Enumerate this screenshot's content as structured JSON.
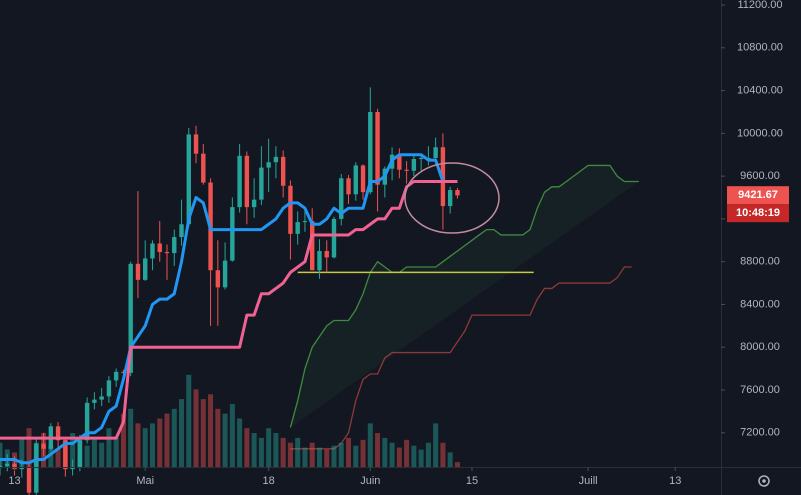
{
  "chart_data": {
    "type": "candlestick",
    "open": [
      6800,
      6870,
      6890,
      6910,
      6860,
      6880,
      6640,
      7100,
      7050,
      7260,
      7130,
      6860,
      6880,
      7130,
      7480,
      7510,
      7540,
      7690,
      7770,
      7760,
      8780,
      8630,
      8830,
      8970,
      8890,
      8880,
      9030,
      9150,
      9990,
      9810,
      9540,
      8720,
      8560,
      8810,
      9310,
      9790,
      9310,
      9380,
      9680,
      9730,
      9780,
      9510,
      9060,
      9170,
      9180,
      8720,
      8900,
      8840,
      9200,
      9580,
      9430,
      9700,
      9450,
      10200,
      9520,
      9670,
      9800,
      9660,
      9650,
      9760,
      9770,
      9770,
      9870,
      9320,
      9470
    ],
    "high": [
      6950,
      6960,
      7000,
      6980,
      6950,
      6930,
      7150,
      7200,
      7290,
      7300,
      7150,
      6950,
      7180,
      7530,
      7580,
      7620,
      7730,
      7800,
      7790,
      8800,
      9460,
      9000,
      9000,
      9180,
      8960,
      9100,
      9380,
      10050,
      10070,
      9900,
      9580,
      9000,
      8980,
      9400,
      9900,
      9830,
      9580,
      9880,
      9950,
      9880,
      9840,
      9560,
      9270,
      9310,
      9300,
      9010,
      9000,
      9220,
      9620,
      9610,
      9730,
      9710,
      10430,
      10230,
      9690,
      9870,
      9860,
      9740,
      9800,
      9800,
      9880,
      9960,
      10000,
      9500,
      9490
    ],
    "low": [
      6750,
      6800,
      6840,
      6800,
      6780,
      6600,
      6620,
      6980,
      7030,
      7060,
      6790,
      6800,
      6840,
      7100,
      7420,
      7450,
      7480,
      7630,
      7700,
      7730,
      8460,
      8620,
      8720,
      8800,
      8630,
      8760,
      8950,
      9120,
      9720,
      9520,
      8200,
      8200,
      8540,
      8800,
      9260,
      9150,
      9210,
      9330,
      9450,
      9580,
      9400,
      8820,
      8960,
      9080,
      8720,
      8640,
      8700,
      8830,
      9140,
      9340,
      9370,
      9380,
      9430,
      9270,
      9400,
      9560,
      9580,
      9530,
      9600,
      9650,
      9700,
      9730,
      9100,
      9250,
      9390
    ],
    "close": [
      6870,
      6890,
      6910,
      6860,
      6880,
      6640,
      7100,
      7050,
      7260,
      7130,
      6860,
      6880,
      7130,
      7480,
      7510,
      7540,
      7690,
      7770,
      7760,
      8780,
      8630,
      8830,
      8970,
      8890,
      8880,
      9030,
      9150,
      9990,
      9810,
      9540,
      8720,
      8560,
      8810,
      9310,
      9790,
      9310,
      9380,
      9680,
      9730,
      9780,
      9510,
      9060,
      9170,
      9180,
      8720,
      8900,
      8840,
      9200,
      9580,
      9430,
      9700,
      9450,
      10200,
      9520,
      9670,
      9800,
      9660,
      9650,
      9760,
      9770,
      9770,
      9870,
      9320,
      9470,
      9420
    ],
    "volume": [
      20,
      25,
      18,
      15,
      30,
      40,
      25,
      35,
      22,
      18,
      28,
      35,
      30,
      22,
      30,
      25,
      40,
      30,
      55,
      60,
      45,
      40,
      45,
      50,
      55,
      60,
      70,
      95,
      80,
      70,
      75,
      60,
      55,
      65,
      50,
      40,
      35,
      30,
      40,
      35,
      30,
      25,
      30,
      20,
      25,
      20,
      18,
      22,
      25,
      30,
      22,
      28,
      45,
      35,
      30,
      25,
      20,
      28,
      22,
      18,
      25,
      45,
      25,
      15,
      5
    ],
    "vlim": [
      0,
      100
    ],
    "up_color": "#26a69a",
    "down_color": "#ef5350",
    "lines": [
      {
        "color": "#2196f3",
        "values": [
          6950,
          6950,
          6950,
          6950,
          6920,
          6920,
          6950,
          6950,
          7000,
          7050,
          7100,
          7100,
          7150,
          7200,
          7200,
          7250,
          7400,
          7450,
          7700,
          8000,
          8100,
          8200,
          8400,
          8450,
          8450,
          8500,
          8800,
          9200,
          9400,
          9350,
          9100,
          9100,
          9100,
          9100,
          9100,
          9100,
          9100,
          9100,
          9150,
          9200,
          9300,
          9350,
          9350,
          9300,
          9150,
          9150,
          9200,
          9300,
          9250,
          9300,
          9300,
          9300,
          9550,
          9550,
          9600,
          9750,
          9800,
          9800,
          9800,
          9800,
          9750,
          9750,
          9550,
          9550,
          9550
        ]
      },
      {
        "color": "#f06292",
        "values": [
          7150,
          7150,
          7150,
          7150,
          7150,
          7150,
          7150,
          7150,
          7150,
          7150,
          7150,
          7150,
          7150,
          7150,
          7150,
          7150,
          7150,
          7150,
          7300,
          8000,
          8000,
          8000,
          8000,
          8000,
          8000,
          8000,
          8000,
          8000,
          8000,
          8000,
          8000,
          8000,
          8000,
          8000,
          8000,
          8300,
          8300,
          8500,
          8500,
          8550,
          8600,
          8700,
          8750,
          8800,
          9050,
          9050,
          9050,
          9050,
          9050,
          9050,
          9100,
          9100,
          9150,
          9200,
          9200,
          9300,
          9300,
          9500,
          9550,
          9550,
          9550,
          9550,
          9550,
          9550,
          9550
        ]
      }
    ],
    "cloud": {
      "span_a": {
        "color": "#3f8a3f",
        "values": [
          null,
          null,
          null,
          null,
          null,
          null,
          null,
          null,
          null,
          null,
          null,
          null,
          null,
          null,
          null,
          null,
          null,
          null,
          null,
          null,
          null,
          null,
          null,
          null,
          null,
          null,
          null,
          null,
          null,
          null,
          null,
          null,
          null,
          null,
          null,
          null,
          null,
          null,
          null,
          null,
          null,
          7250,
          7500,
          7800,
          8000,
          8100,
          8200,
          8250,
          8250,
          8250,
          8350,
          8500,
          8700,
          8800,
          8750,
          8700,
          8700,
          8750,
          8750,
          8750,
          8750,
          8750,
          8800,
          8850,
          8900,
          8950,
          9000,
          9050,
          9100,
          9100,
          9050,
          9050,
          9050,
          9050,
          9100,
          9300,
          9450,
          9500,
          9500,
          9550,
          9600,
          9650,
          9700,
          9700,
          9700,
          9700,
          9600,
          9550,
          9550,
          9550
        ]
      },
      "span_b": {
        "color": "#8c3a36",
        "values": [
          null,
          null,
          null,
          null,
          null,
          null,
          null,
          null,
          null,
          null,
          null,
          null,
          null,
          null,
          null,
          null,
          null,
          null,
          null,
          null,
          null,
          null,
          null,
          null,
          null,
          null,
          null,
          null,
          null,
          null,
          null,
          null,
          null,
          null,
          null,
          null,
          null,
          null,
          null,
          null,
          null,
          7050,
          7050,
          7050,
          7050,
          7050,
          7050,
          7050,
          7100,
          7200,
          7500,
          7700,
          7750,
          7750,
          7900,
          7950,
          7950,
          7950,
          7950,
          7950,
          7950,
          7950,
          7950,
          7950,
          8050,
          8150,
          8300,
          8300,
          8300,
          8300,
          8300,
          8300,
          8300,
          8300,
          8300,
          8450,
          8550,
          8550,
          8600,
          8600,
          8600,
          8600,
          8600,
          8600,
          8600,
          8600,
          8650,
          8750,
          8750
        ]
      },
      "fill": "#4caf50"
    },
    "level": {
      "value": 8700,
      "from": 42,
      "to": 74.5,
      "color": "#c9c93f"
    },
    "xlim": [
      1,
      100.3
    ],
    "xticks": [
      {
        "value": 3,
        "label": "13"
      },
      {
        "value": 21,
        "label": "Mai"
      },
      {
        "value": 38,
        "label": "18"
      },
      {
        "value": 52,
        "label": "Juin"
      },
      {
        "value": 66,
        "label": "15"
      },
      {
        "value": 82,
        "label": "Juill"
      },
      {
        "value": 94,
        "label": "13"
      }
    ],
    "ylim": [
      6880,
      11247
    ],
    "yticks": [
      {
        "value": 7200,
        "label": "7200.00"
      },
      {
        "value": 7600,
        "label": "7600.00"
      },
      {
        "value": 8000,
        "label": "8000.00"
      },
      {
        "value": 8400,
        "label": "8400.00"
      },
      {
        "value": 8800,
        "label": "8800.00"
      },
      {
        "value": 9200,
        "label": "9200.00"
      },
      {
        "value": 9600,
        "label": "9600.00"
      },
      {
        "value": 10000,
        "label": "10000.00"
      },
      {
        "value": 10400,
        "label": "10400.00"
      },
      {
        "value": 10800,
        "label": "10800.00"
      },
      {
        "value": 11200,
        "label": "11200.00"
      }
    ],
    "last_price": {
      "value": 9421.67,
      "label": "9421.67"
    },
    "countdown": "10:48:19"
  }
}
